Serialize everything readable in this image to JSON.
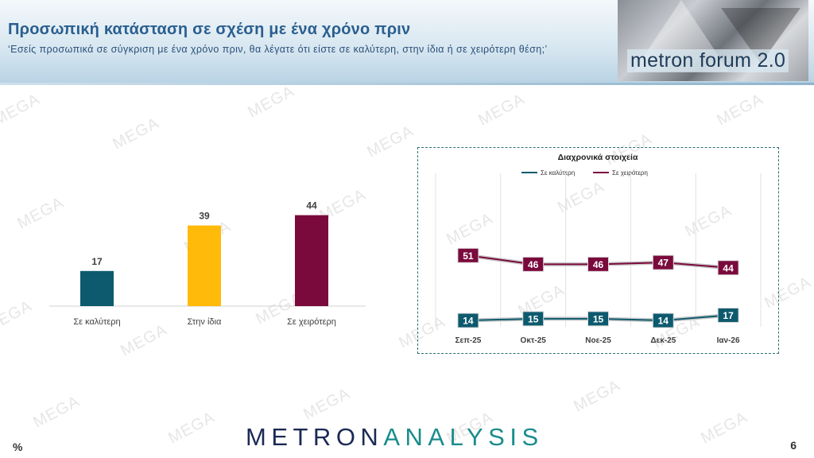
{
  "header": {
    "title": "Προσωπική κατάσταση σε σχέση με ένα χρόνο πριν",
    "subtitle": "‘Εσείς προσωπικά σε σύγκριση με ένα χρόνο πριν, θα λέγατε ότι είστε σε καλύτερη, στην ίδια ή σε χειρότερη θέση;’",
    "logo_text": "metron forum 2.0"
  },
  "watermark_text": "MEGA",
  "footer": {
    "brand_part1": "METRON",
    "brand_part2": "ANALYSIS",
    "unit": "%",
    "page_number": "6"
  },
  "colors": {
    "better": "#0d5a6e",
    "same": "#ffba0a",
    "worse": "#7a0a3c",
    "title": "#2a5f8f"
  },
  "chart_data": [
    {
      "type": "bar",
      "categories": [
        "Σε καλύτερη",
        "Στην ίδια",
        "Σε χειρότερη"
      ],
      "values": [
        17,
        39,
        44
      ],
      "colors": [
        "#0d5a6e",
        "#ffba0a",
        "#7a0a3c"
      ],
      "ylim": [
        0,
        50
      ],
      "grid": false
    },
    {
      "type": "line",
      "title": "Διαχρονικά στοιχεία",
      "categories": [
        "Σεπ-25",
        "Οκτ-25",
        "Νοε-25",
        "Δεκ-25",
        "Ιαν-26"
      ],
      "series": [
        {
          "name": "Σε καλύτερη",
          "values": [
            14,
            15,
            15,
            14,
            17
          ],
          "color": "#0d5a6e"
        },
        {
          "name": "Σε χειρότερη",
          "values": [
            51,
            46,
            46,
            47,
            44
          ],
          "color": "#7a0a3c"
        }
      ],
      "ylim": [
        0,
        70
      ],
      "legend": "top",
      "grid": "vertical"
    }
  ]
}
